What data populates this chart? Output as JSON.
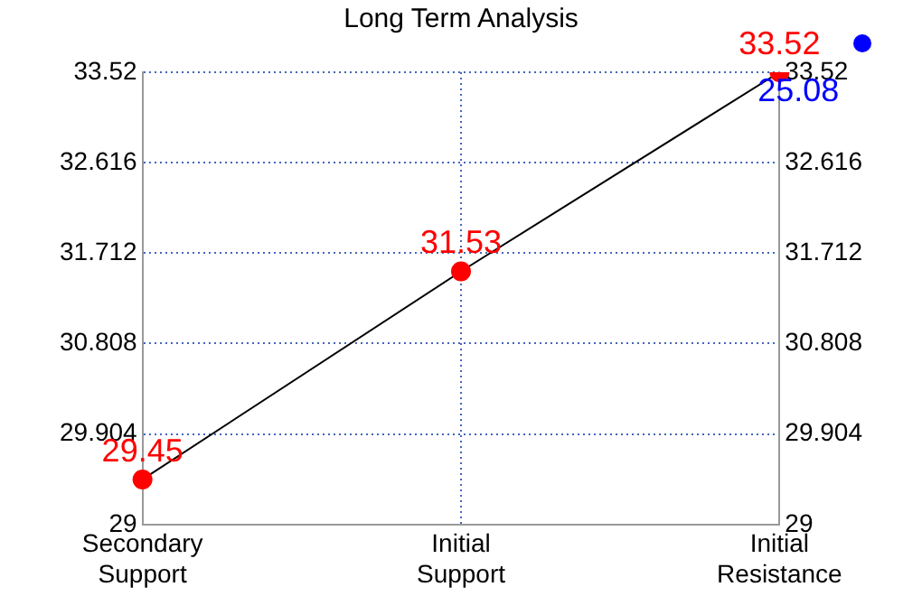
{
  "chart_data": {
    "type": "line",
    "title": "Long Term Analysis",
    "categories": [
      "Secondary Support",
      "Initial Support",
      "Initial Resistance"
    ],
    "series": [
      {
        "color": "#ff0000",
        "values": [
          29.45,
          31.53,
          33.52
        ]
      }
    ],
    "ylim": [
      29,
      33.52
    ],
    "yticks": [
      29,
      29.904,
      30.808,
      31.712,
      32.616,
      33.52
    ],
    "y2lim": [
      29,
      33.52
    ],
    "y2ticks": [
      29,
      29.904,
      30.808,
      31.712,
      32.616,
      33.52
    ],
    "grid": true,
    "legend": false,
    "marker": "circle",
    "data_labels": true,
    "annotations": [
      "25.08"
    ]
  }
}
